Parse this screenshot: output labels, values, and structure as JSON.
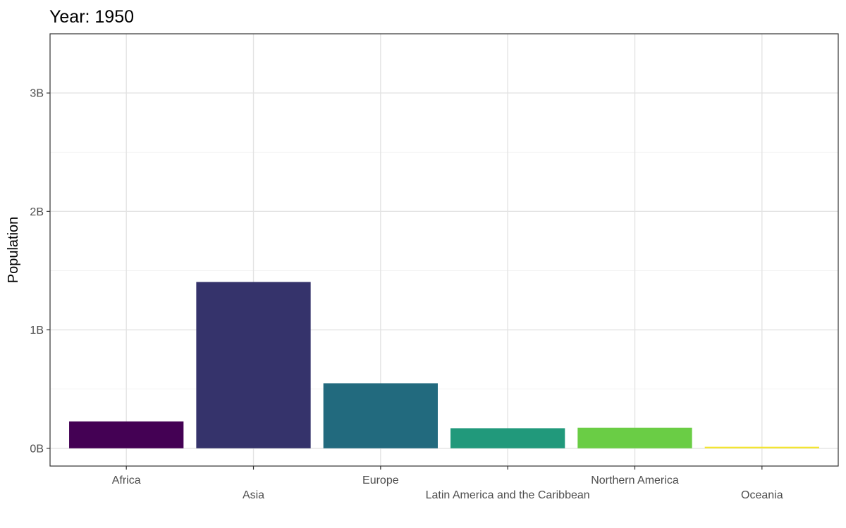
{
  "chart_data": {
    "type": "bar",
    "title": "Year: 1950",
    "xlabel": "",
    "ylabel": "Population",
    "categories": [
      "Africa",
      "Asia",
      "Europe",
      "Latin America and the Caribbean",
      "Northern America",
      "Oceania"
    ],
    "values": [
      0.227,
      1.404,
      0.549,
      0.169,
      0.173,
      0.0127
    ],
    "value_unit": "billions",
    "colors": [
      "#440154",
      "#35336B",
      "#226A7E",
      "#21997B",
      "#6ACD45",
      "#F4E52D"
    ],
    "ylim": [
      -0.15,
      3.5
    ],
    "yticks": [
      {
        "value": 0,
        "label": "0B"
      },
      {
        "value": 1,
        "label": "1B"
      },
      {
        "value": 2,
        "label": "2B"
      },
      {
        "value": 3,
        "label": "3B"
      }
    ],
    "y_minor_ticks": [
      0.5,
      1.5,
      2.5,
      3.5
    ],
    "x_label_rows": [
      0,
      1,
      0,
      1,
      0,
      1
    ],
    "grid": true,
    "legend": "none"
  }
}
